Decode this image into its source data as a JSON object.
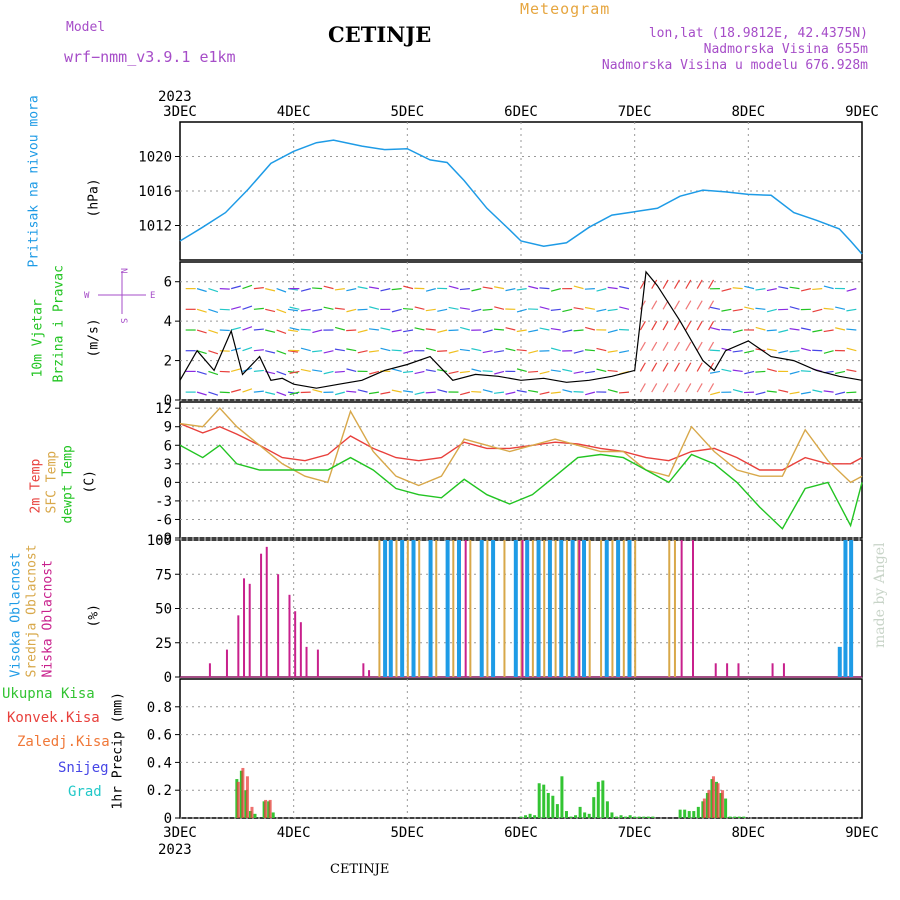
{
  "header": {
    "title": "CETINJE",
    "model_label": "Model",
    "model_name": "wrf−nmm_v3.9.1  e1km",
    "meteogram_label": "Meteogram",
    "lonlat": "lon,lat (18.9812E, 42.4375N)",
    "altitude": "Nadmorska Visina 655m",
    "model_altitude": "Nadmorska Visina u modelu 676.928m"
  },
  "footer": {
    "location": "CETINJE",
    "watermark": "made by Angel"
  },
  "time_axis": {
    "year": "2023",
    "labels": [
      "3DEC",
      "4DEC",
      "5DEC",
      "6DEC",
      "7DEC",
      "8DEC",
      "9DEC"
    ]
  },
  "colors": {
    "pressure": "#1e9be6",
    "temp2m": "#e8403c",
    "sfc_temp": "#d8a84a",
    "dewpoint": "#22c422",
    "high_cloud": "#1e9be6",
    "mid_cloud": "#d8a84a",
    "low_cloud": "#c8208c",
    "total_precip": "#33c433",
    "conv_precip": "#e8403c",
    "frozen_precip": "#f07838",
    "snow": "#4646e6",
    "graupel": "#22c8c8",
    "wind_speed": "#000000",
    "gust": "#e8403c"
  },
  "panels": {
    "pressure": {
      "label": "Pritisak na nivou mora",
      "unit": "(hPa)"
    },
    "wind": {
      "label1": "10m Vjetar",
      "label2": "Brzina i Pravac",
      "unit": "(m/s)",
      "compass_n": "N",
      "compass_s": "S",
      "compass_w": "W",
      "compass_e": "E"
    },
    "temp": {
      "label_2m": "2m Temp",
      "label_sfc": "SFC Temp",
      "label_dew": "dewpt Temp",
      "unit": "(C)"
    },
    "cloud": {
      "label_high": "Visoka Oblacnost",
      "label_mid": "Srednja Oblacnost",
      "label_low": "Niska Oblacnost",
      "unit": "(%)"
    },
    "precip": {
      "label": "1hr Precip (mm)",
      "legend": [
        "Ukupna Kisa",
        "Konvek.Kisa",
        "Zaledj.Kisa",
        "Snijeg",
        "Grad"
      ]
    }
  },
  "chart_data": [
    {
      "type": "line",
      "name": "pressure",
      "ylabel": "Pritisak na nivou mora (hPa)",
      "ylim": [
        1008,
        1024
      ],
      "yticks": [
        1012,
        1016,
        1020
      ],
      "x": [
        0,
        0.1,
        0.2,
        0.4,
        0.6,
        0.8,
        1.0,
        1.2,
        1.35,
        1.6,
        1.8,
        2.0,
        2.2,
        2.35,
        2.5,
        2.7,
        2.9,
        3.0,
        3.2,
        3.4,
        3.6,
        3.8,
        4.0,
        4.2,
        4.4,
        4.6,
        4.8,
        5.0,
        5.2,
        5.4,
        5.6,
        5.8,
        5.9,
        6.0
      ],
      "values": [
        1010.2,
        1011.0,
        1011.8,
        1013.5,
        1016.2,
        1019.2,
        1020.6,
        1021.6,
        1021.9,
        1021.2,
        1020.8,
        1020.9,
        1019.6,
        1019.3,
        1017.2,
        1014.0,
        1011.5,
        1010.2,
        1009.6,
        1010.0,
        1011.8,
        1013.2,
        1013.6,
        1014.0,
        1015.4,
        1016.1,
        1015.9,
        1015.6,
        1015.5,
        1013.5,
        1012.6,
        1011.6,
        1010.2,
        1008.7
      ],
      "series_name": "Pritisak na nivou mora"
    },
    {
      "type": "line",
      "name": "wind",
      "ylabel": "10m Vjetar Brzina i Pravac (m/s)",
      "ylim": [
        0,
        7
      ],
      "yticks": [
        0,
        2,
        4,
        6
      ],
      "x": [
        0,
        0.15,
        0.3,
        0.45,
        0.55,
        0.7,
        0.8,
        0.9,
        1.0,
        1.2,
        1.4,
        1.6,
        1.8,
        2.0,
        2.2,
        2.4,
        2.6,
        2.8,
        3.0,
        3.2,
        3.4,
        3.6,
        3.8,
        4.0,
        4.1,
        4.2,
        4.4,
        4.6,
        4.7,
        4.8,
        5.0,
        5.2,
        5.4,
        5.6,
        5.8,
        6.0
      ],
      "speed": [
        1.0,
        2.5,
        1.5,
        3.5,
        1.3,
        2.2,
        1.0,
        1.1,
        0.8,
        0.6,
        0.8,
        1.0,
        1.5,
        1.8,
        2.2,
        1.0,
        1.3,
        1.2,
        1.0,
        1.1,
        0.9,
        1.0,
        1.2,
        1.5,
        6.5,
        5.8,
        4.0,
        2.0,
        1.5,
        2.5,
        3.0,
        2.2,
        2.0,
        1.5,
        1.2,
        1.0
      ],
      "series_name": "Brzina i Pravac"
    },
    {
      "type": "line",
      "name": "temperature",
      "ylabel": "Temp (C)",
      "ylim": [
        -9,
        13
      ],
      "yticks": [
        -9,
        -6,
        -3,
        0,
        3,
        6,
        9,
        12
      ],
      "x": [
        0,
        0.2,
        0.35,
        0.5,
        0.7,
        0.9,
        1.1,
        1.3,
        1.5,
        1.7,
        1.9,
        2.1,
        2.3,
        2.5,
        2.7,
        2.9,
        3.1,
        3.3,
        3.5,
        3.7,
        3.9,
        4.1,
        4.3,
        4.5,
        4.7,
        4.9,
        5.1,
        5.3,
        5.5,
        5.7,
        5.9,
        6.0
      ],
      "series": [
        {
          "name": "2m Temp",
          "values": [
            9.5,
            8.0,
            9.0,
            7.8,
            6.0,
            4.0,
            3.5,
            4.5,
            7.5,
            5.5,
            4.0,
            3.5,
            4.0,
            6.5,
            5.5,
            5.5,
            6.0,
            6.5,
            6.2,
            5.5,
            5.0,
            4.0,
            3.5,
            5.0,
            5.5,
            4.0,
            2.0,
            2.0,
            4.0,
            3.0,
            3.0,
            4.0
          ]
        },
        {
          "name": "SFC Temp",
          "values": [
            9.5,
            9.0,
            12.0,
            9.0,
            6.0,
            3.0,
            1.0,
            0.0,
            11.5,
            5.0,
            1.0,
            -0.5,
            1.0,
            7.0,
            6.0,
            5.0,
            6.0,
            7.0,
            6.0,
            5.0,
            5.0,
            2.0,
            1.0,
            9.0,
            5.0,
            2.0,
            1.0,
            1.0,
            8.5,
            3.5,
            0.0,
            1.0
          ]
        },
        {
          "name": "dewpt Temp",
          "values": [
            6.0,
            4.0,
            6.0,
            3.0,
            2.0,
            2.0,
            2.0,
            2.0,
            4.0,
            2.0,
            -1.0,
            -2.0,
            -2.5,
            0.5,
            -2.0,
            -3.5,
            -2.0,
            1.0,
            4.0,
            4.5,
            4.0,
            2.0,
            0.0,
            4.5,
            3.0,
            0.0,
            -4.0,
            -7.5,
            -1.0,
            0.0,
            -7.0,
            0.0
          ]
        }
      ]
    },
    {
      "type": "bar",
      "name": "cloud",
      "ylabel": "Oblacnost (%)",
      "ylim": [
        0,
        100
      ],
      "yticks": [
        0,
        25,
        50,
        75,
        100
      ],
      "series": [
        {
          "name": "Visoka Oblacnost",
          "x": [
            1.8,
            1.85,
            1.95,
            2.05,
            2.2,
            2.35,
            2.45,
            2.65,
            2.75,
            2.95,
            3.05,
            3.15,
            3.25,
            3.35,
            3.45,
            3.55,
            3.75,
            3.85,
            3.95,
            5.8,
            5.85,
            5.9
          ],
          "values": [
            100,
            100,
            100,
            100,
            100,
            100,
            100,
            100,
            100,
            100,
            100,
            100,
            100,
            100,
            100,
            100,
            100,
            100,
            100,
            22,
            100,
            100
          ]
        },
        {
          "name": "Srednja Oblacnost",
          "x": [
            1.75,
            1.9,
            2.0,
            2.1,
            2.25,
            2.4,
            2.55,
            2.7,
            2.85,
            3.0,
            3.1,
            3.2,
            3.3,
            3.4,
            3.5,
            3.6,
            3.7,
            3.8,
            3.9,
            4.0,
            4.3,
            4.35
          ],
          "values": [
            100,
            100,
            100,
            100,
            100,
            100,
            100,
            100,
            100,
            100,
            100,
            100,
            100,
            100,
            100,
            100,
            100,
            100,
            100,
            100,
            100,
            100
          ]
        },
        {
          "name": "Niska Oblacnost",
          "x": [
            0.25,
            0.4,
            0.5,
            0.55,
            0.6,
            0.7,
            0.75,
            0.85,
            0.95,
            1.0,
            1.05,
            1.1,
            1.2,
            1.6,
            1.65,
            2.5,
            3.0,
            3.5,
            4.4,
            4.5,
            4.7,
            4.8,
            4.9,
            5.2,
            5.3
          ],
          "values": [
            10,
            20,
            45,
            72,
            68,
            90,
            95,
            75,
            60,
            48,
            40,
            22,
            20,
            10,
            5,
            100,
            100,
            100,
            100,
            100,
            10,
            10,
            10,
            10,
            10
          ]
        }
      ]
    },
    {
      "type": "bar",
      "name": "precip",
      "ylabel": "1hr Precip (mm)",
      "ylim": [
        0,
        1.0
      ],
      "yticks": [
        0,
        0.2,
        0.4,
        0.6,
        0.8
      ],
      "series": [
        {
          "name": "Ukupna Kisa",
          "x": [
            0.5,
            0.54,
            0.58,
            0.62,
            0.66,
            0.74,
            0.78,
            0.82,
            3.0,
            3.04,
            3.08,
            3.12,
            3.16,
            3.2,
            3.24,
            3.28,
            3.32,
            3.36,
            3.4,
            3.44,
            3.48,
            3.52,
            3.56,
            3.6,
            3.64,
            3.68,
            3.72,
            3.76,
            3.8,
            3.84,
            3.88,
            3.92,
            3.96,
            4.0,
            4.04,
            4.08,
            4.12,
            4.16,
            4.4,
            4.44,
            4.48,
            4.52,
            4.56,
            4.6,
            4.64,
            4.68,
            4.72,
            4.76,
            4.8,
            4.84,
            4.88,
            4.92,
            4.96
          ],
          "values": [
            0.28,
            0.34,
            0.2,
            0.05,
            0.03,
            0.12,
            0.12,
            0.04,
            0.01,
            0.02,
            0.03,
            0.02,
            0.25,
            0.24,
            0.18,
            0.16,
            0.1,
            0.3,
            0.05,
            0.01,
            0.02,
            0.08,
            0.04,
            0.03,
            0.15,
            0.26,
            0.27,
            0.12,
            0.04,
            0.01,
            0.02,
            0.01,
            0.02,
            0.01,
            0.01,
            0.01,
            0.01,
            0.01,
            0.06,
            0.06,
            0.05,
            0.05,
            0.08,
            0.12,
            0.18,
            0.28,
            0.26,
            0.18,
            0.14,
            0.01,
            0.01,
            0.01,
            0.01
          ]
        },
        {
          "name": "Konvek.Kisa",
          "x": [
            0.5,
            0.54,
            0.58,
            0.62,
            0.74,
            0.78,
            4.6,
            4.64,
            4.68,
            4.72,
            4.76
          ],
          "values": [
            0.26,
            0.36,
            0.3,
            0.08,
            0.13,
            0.13,
            0.14,
            0.2,
            0.3,
            0.25,
            0.2
          ]
        }
      ]
    }
  ]
}
